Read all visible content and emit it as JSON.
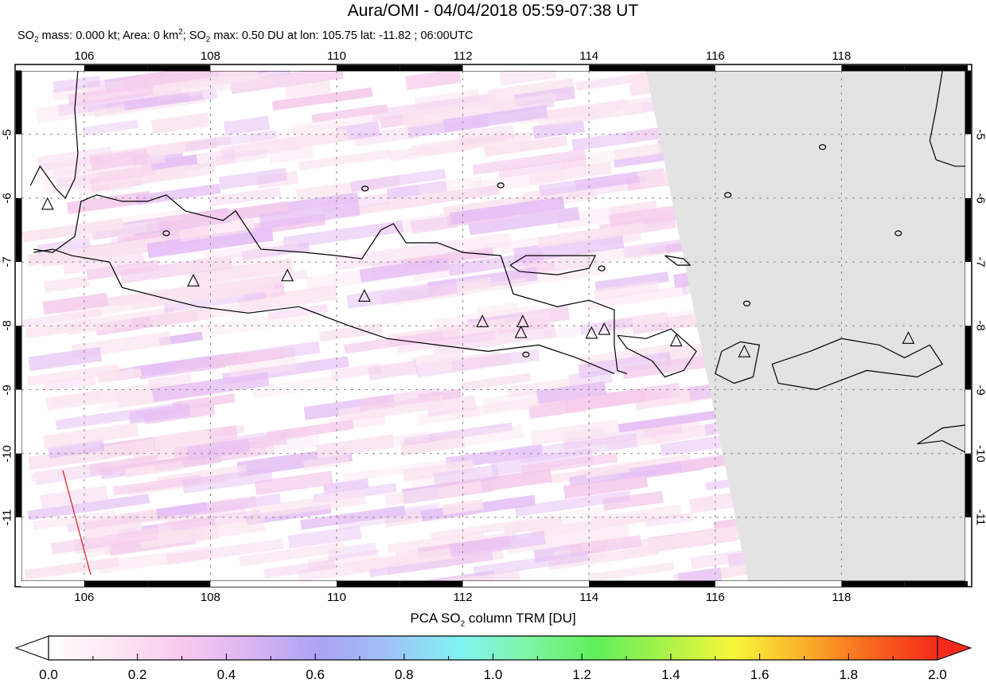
{
  "header": {
    "title": "Aura/OMI - 04/04/2018 05:59-07:38 UT",
    "subtitle_parts": {
      "p1": "SO",
      "s1": "2",
      "p2": " mass: 0.000 kt; Area: 0 km",
      "s2": "2",
      "p3": "; SO",
      "s3": "2",
      "p4": " max: 0.50 DU at lon: 105.75 lat: -11.82 ; 06:00UTC"
    }
  },
  "map": {
    "lon_range": [
      105,
      120
    ],
    "lat_range": [
      -12,
      -4
    ],
    "lon_ticks": [
      "106",
      "108",
      "110",
      "112",
      "114",
      "116",
      "118"
    ],
    "lat_ticks": [
      "-5",
      "-6",
      "-7",
      "-8",
      "-9",
      "-10",
      "-11"
    ],
    "no_data_color": "#e3e3e3",
    "volcanoes": [
      [
        105.42,
        -6.1
      ],
      [
        107.73,
        -7.3
      ],
      [
        109.22,
        -7.22
      ],
      [
        110.44,
        -7.54
      ],
      [
        112.31,
        -7.94
      ],
      [
        112.95,
        -7.94
      ],
      [
        112.92,
        -8.11
      ],
      [
        114.04,
        -8.12
      ],
      [
        114.24,
        -8.06
      ],
      [
        115.38,
        -8.24
      ],
      [
        116.46,
        -8.41
      ],
      [
        119.06,
        -8.2
      ]
    ],
    "max_marker": {
      "lon": 105.75,
      "lat": -11.82
    },
    "colors": {
      "swath_light": "#fbe4ef",
      "swath_mid": "#f5cdec",
      "swath_violet": "#e6c0f5",
      "red_line": "#dd1a1a"
    }
  },
  "colorbar": {
    "title_parts": {
      "p1": "PCA SO",
      "s1": "2",
      "p2": " column TRM [DU]"
    },
    "labels": [
      "0.0",
      "0.2",
      "0.4",
      "0.6",
      "0.8",
      "1.0",
      "1.2",
      "1.4",
      "1.6",
      "1.8",
      "2.0"
    ],
    "stops": [
      "#ffffff",
      "#fde6f2",
      "#f8c8f0",
      "#d8b4f2",
      "#a9a3f5",
      "#9fc4f5",
      "#7ff3f3",
      "#80f5a8",
      "#5ff05a",
      "#a8f24a",
      "#f7f73a",
      "#fbb42a",
      "#f96a20",
      "#f52a1a"
    ],
    "under_color": "#ffffff",
    "over_color": "#f52a1a"
  }
}
